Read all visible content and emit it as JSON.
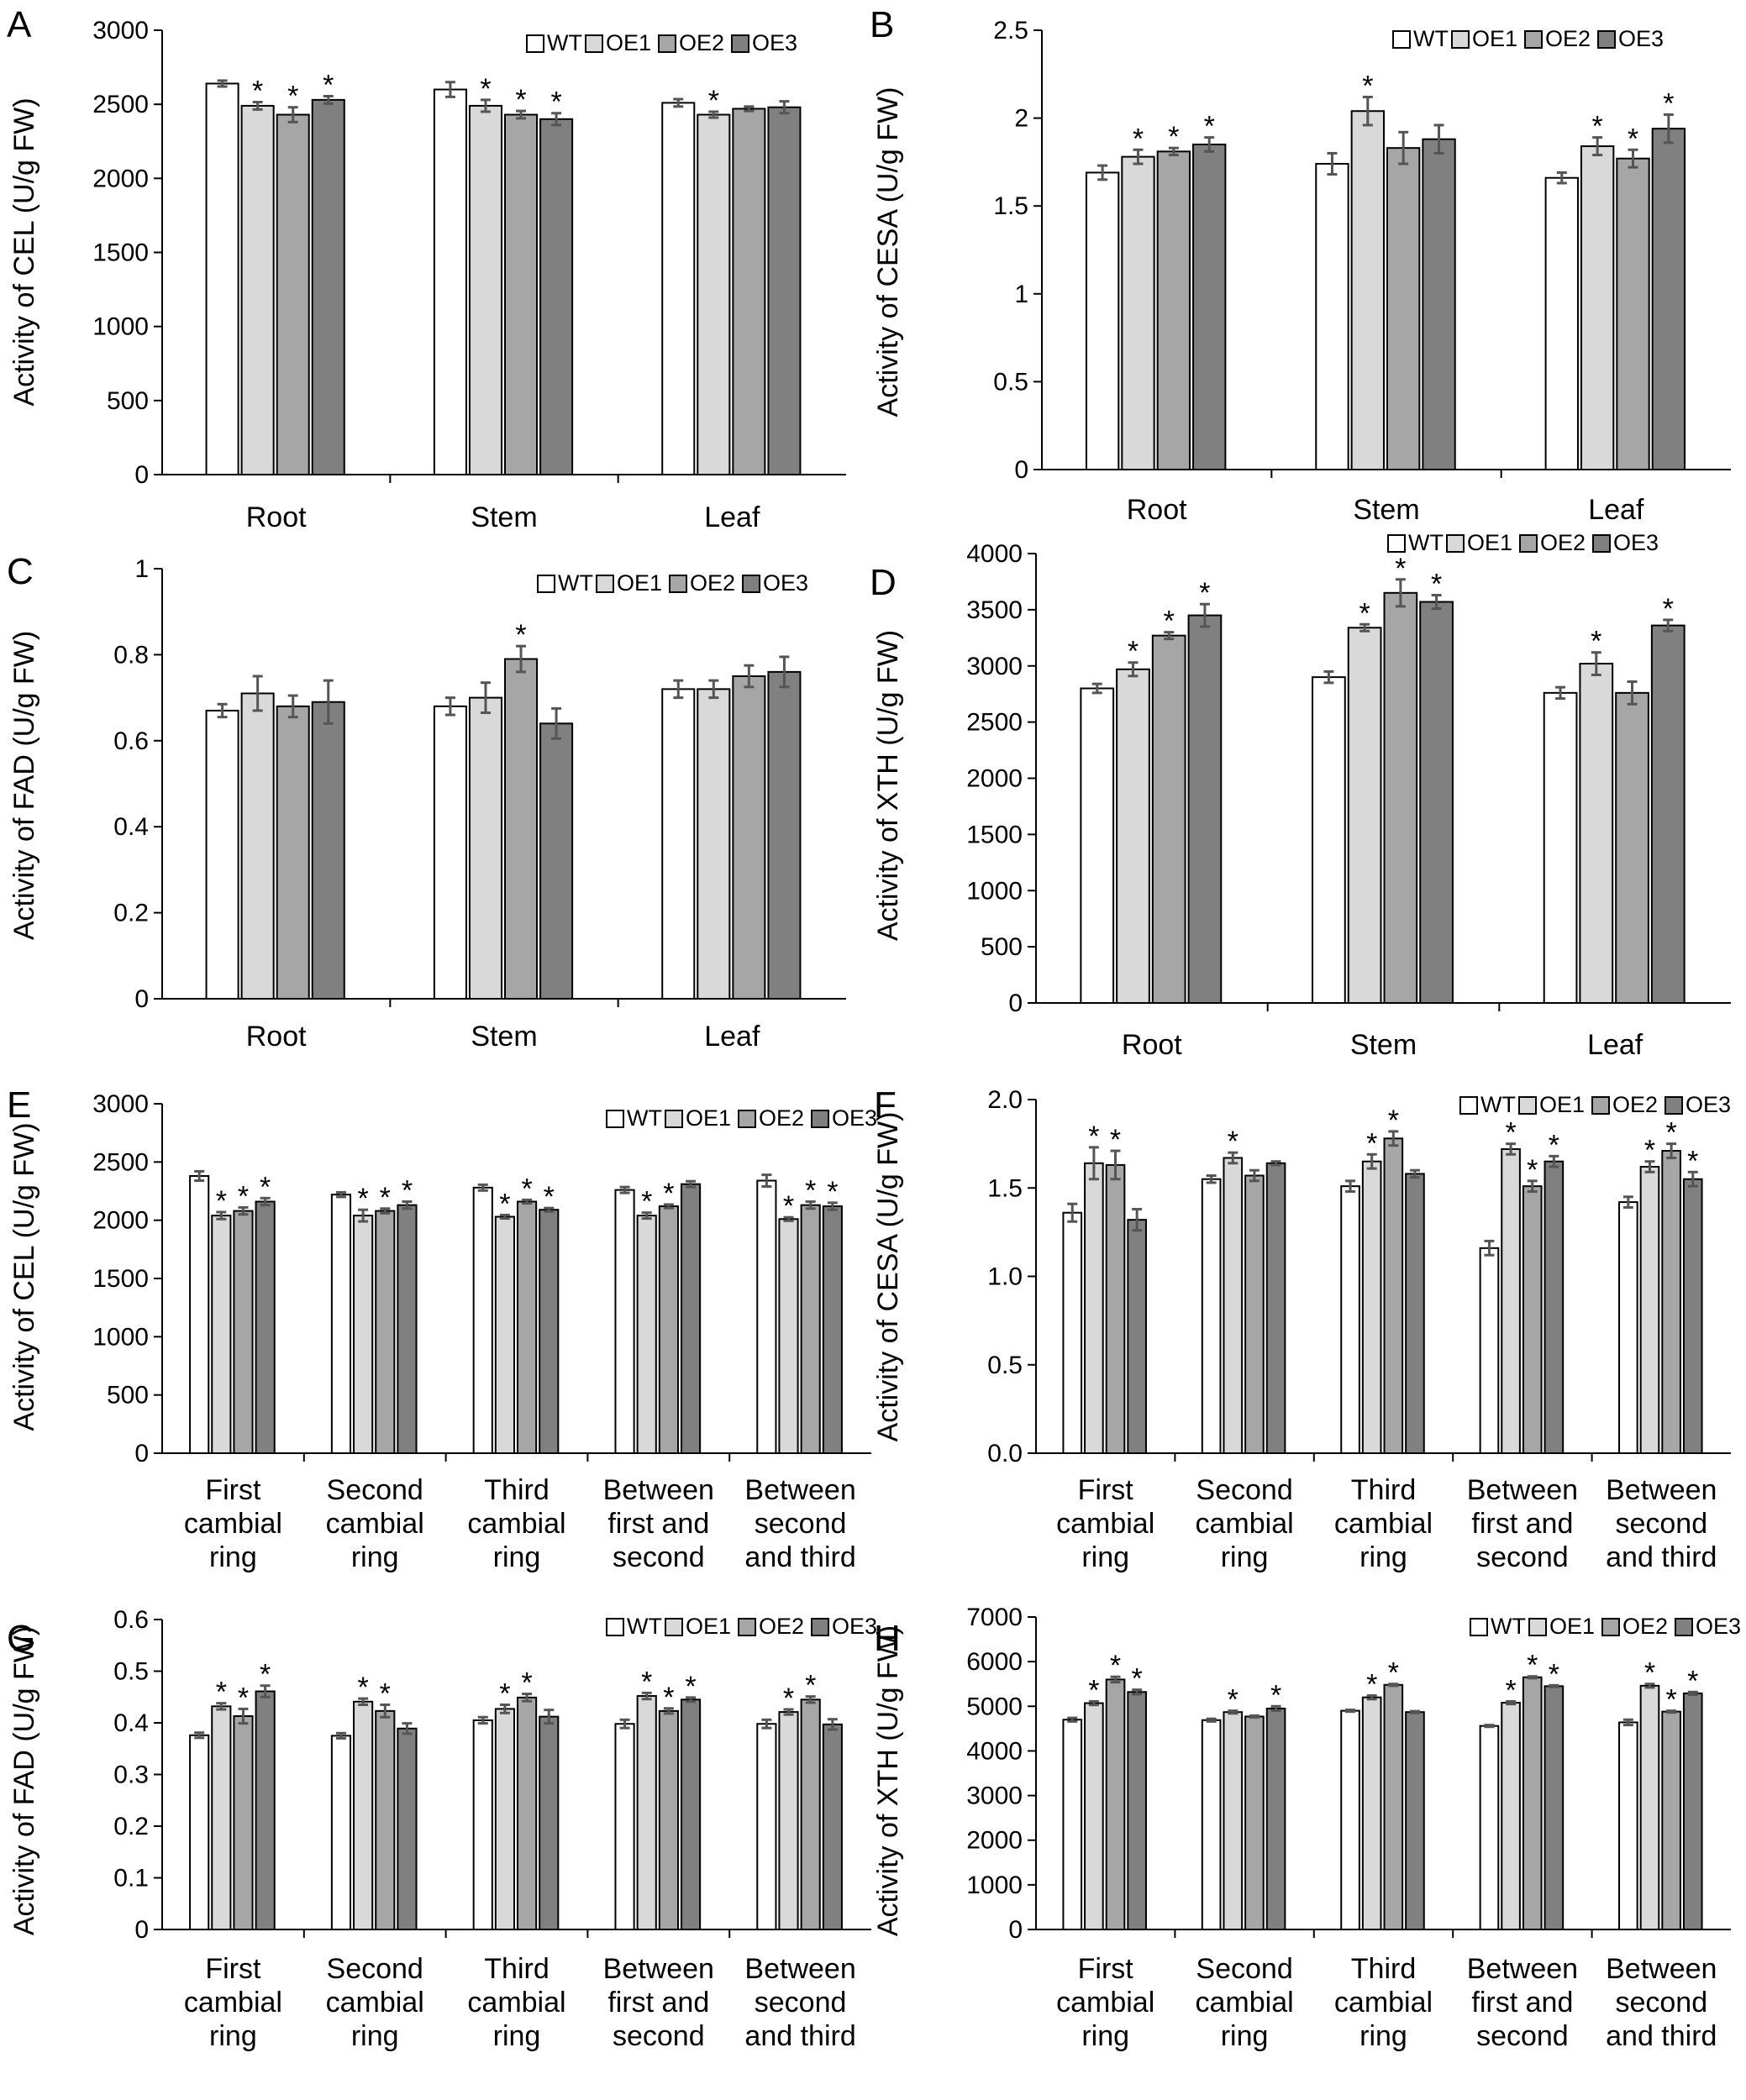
{
  "series_colors": [
    "#ffffff",
    "#d9d9d9",
    "#a6a6a6",
    "#808080"
  ],
  "chart_data": [
    {
      "panel": "A",
      "type": "bar",
      "ylabel": "Activity of CEL (U/g FW)",
      "ylim": [
        0,
        3000
      ],
      "ticks": [
        "0",
        "500",
        "1000",
        "1500",
        "2000",
        "2500",
        "3000"
      ],
      "categories": [
        [
          "Root"
        ],
        [
          "Stem"
        ],
        [
          "Leaf"
        ]
      ],
      "series": [
        {
          "name": "WT",
          "values": [
            2640,
            2600,
            2510
          ],
          "errors": [
            20,
            50,
            25
          ],
          "sig": [
            false,
            false,
            false
          ]
        },
        {
          "name": "OE1",
          "values": [
            2490,
            2490,
            2430
          ],
          "errors": [
            25,
            40,
            20
          ],
          "sig": [
            true,
            true,
            true
          ]
        },
        {
          "name": "OE2",
          "values": [
            2430,
            2430,
            2470
          ],
          "errors": [
            50,
            25,
            15
          ],
          "sig": [
            true,
            true,
            false
          ]
        },
        {
          "name": "OE3",
          "values": [
            2530,
            2400,
            2480
          ],
          "errors": [
            25,
            40,
            40
          ],
          "sig": [
            true,
            true,
            false
          ]
        }
      ]
    },
    {
      "panel": "B",
      "type": "bar",
      "ylabel": "Activity of CESA (U/g FW)",
      "ylim": [
        0,
        2.5
      ],
      "ticks": [
        "0",
        "0.5",
        "1",
        "1.5",
        "2",
        "2.5"
      ],
      "categories": [
        [
          "Root"
        ],
        [
          "Stem"
        ],
        [
          "Leaf"
        ]
      ],
      "series": [
        {
          "name": "WT",
          "values": [
            1.69,
            1.74,
            1.66
          ],
          "errors": [
            0.04,
            0.06,
            0.03
          ],
          "sig": [
            false,
            false,
            false
          ]
        },
        {
          "name": "OE1",
          "values": [
            1.78,
            2.04,
            1.84
          ],
          "errors": [
            0.04,
            0.08,
            0.05
          ],
          "sig": [
            true,
            true,
            true
          ]
        },
        {
          "name": "OE2",
          "values": [
            1.81,
            1.83,
            1.77
          ],
          "errors": [
            0.02,
            0.09,
            0.05
          ],
          "sig": [
            true,
            false,
            true
          ]
        },
        {
          "name": "OE3",
          "values": [
            1.85,
            1.88,
            1.94
          ],
          "errors": [
            0.04,
            0.08,
            0.08
          ],
          "sig": [
            true,
            false,
            true
          ]
        }
      ]
    },
    {
      "panel": "C",
      "type": "bar",
      "ylabel": "Activity of FAD (U/g FW)",
      "ylim": [
        0,
        1
      ],
      "ticks": [
        "0",
        "0.2",
        "0.4",
        "0.6",
        "0.8",
        "1"
      ],
      "categories": [
        [
          "Root"
        ],
        [
          "Stem"
        ],
        [
          "Leaf"
        ]
      ],
      "series": [
        {
          "name": "WT",
          "values": [
            0.67,
            0.68,
            0.72
          ],
          "errors": [
            0.015,
            0.02,
            0.02
          ],
          "sig": [
            false,
            false,
            false
          ]
        },
        {
          "name": "OE1",
          "values": [
            0.71,
            0.7,
            0.72
          ],
          "errors": [
            0.04,
            0.035,
            0.02
          ],
          "sig": [
            false,
            false,
            false
          ]
        },
        {
          "name": "OE2",
          "values": [
            0.68,
            0.79,
            0.75
          ],
          "errors": [
            0.025,
            0.03,
            0.025
          ],
          "sig": [
            false,
            true,
            false
          ]
        },
        {
          "name": "OE3",
          "values": [
            0.69,
            0.64,
            0.76
          ],
          "errors": [
            0.05,
            0.035,
            0.035
          ],
          "sig": [
            false,
            false,
            false
          ]
        }
      ]
    },
    {
      "panel": "D",
      "type": "bar",
      "ylabel": "Activity of XTH (U/g FW)",
      "ylim": [
        0,
        4000
      ],
      "ticks": [
        "0",
        "500",
        "1000",
        "1500",
        "2000",
        "2500",
        "3000",
        "3500",
        "4000"
      ],
      "categories": [
        [
          "Root"
        ],
        [
          "Stem"
        ],
        [
          "Leaf"
        ]
      ],
      "series": [
        {
          "name": "WT",
          "values": [
            2800,
            2900,
            2760
          ],
          "errors": [
            40,
            50,
            50
          ],
          "sig": [
            false,
            false,
            false
          ]
        },
        {
          "name": "OE1",
          "values": [
            2970,
            3340,
            3020
          ],
          "errors": [
            60,
            30,
            100
          ],
          "sig": [
            true,
            true,
            true
          ]
        },
        {
          "name": "OE2",
          "values": [
            3270,
            3650,
            2760
          ],
          "errors": [
            30,
            120,
            100
          ],
          "sig": [
            true,
            true,
            false
          ]
        },
        {
          "name": "OE3",
          "values": [
            3450,
            3570,
            3360
          ],
          "errors": [
            100,
            60,
            50
          ],
          "sig": [
            true,
            true,
            true
          ]
        }
      ]
    },
    {
      "panel": "E",
      "type": "bar",
      "ylabel": "Activity of CEL (U/g FW)",
      "ylim": [
        0,
        3000
      ],
      "ticks": [
        "0",
        "500",
        "1000",
        "1500",
        "2000",
        "2500",
        "3000"
      ],
      "categories": [
        [
          "First",
          "cambial",
          "ring"
        ],
        [
          "Second",
          "cambial",
          "ring"
        ],
        [
          "Third",
          "cambial",
          "ring"
        ],
        [
          "Between",
          "first and",
          "second"
        ],
        [
          "Between",
          "second",
          "and third"
        ]
      ],
      "series": [
        {
          "name": "WT",
          "values": [
            2380,
            2220,
            2280,
            2260,
            2340
          ],
          "errors": [
            40,
            20,
            25,
            25,
            50
          ],
          "sig": [
            false,
            false,
            false,
            false,
            false
          ]
        },
        {
          "name": "OE1",
          "values": [
            2040,
            2040,
            2030,
            2040,
            2010
          ],
          "errors": [
            30,
            50,
            15,
            25,
            15
          ],
          "sig": [
            true,
            true,
            true,
            true,
            true
          ]
        },
        {
          "name": "OE2",
          "values": [
            2080,
            2080,
            2160,
            2120,
            2130
          ],
          "errors": [
            30,
            20,
            15,
            15,
            30
          ],
          "sig": [
            true,
            true,
            true,
            true,
            true
          ]
        },
        {
          "name": "OE3",
          "values": [
            2160,
            2130,
            2090,
            2310,
            2120
          ],
          "errors": [
            30,
            30,
            15,
            25,
            30
          ],
          "sig": [
            true,
            true,
            true,
            false,
            true
          ]
        }
      ]
    },
    {
      "panel": "F",
      "type": "bar",
      "ylabel": "Activity of CESA (U/g FW)",
      "ylim": [
        0,
        2.0
      ],
      "ticks": [
        "0.0",
        "0.5",
        "1.0",
        "1.5",
        "2.0"
      ],
      "categories": [
        [
          "First",
          "cambial",
          "ring"
        ],
        [
          "Second",
          "cambial",
          "ring"
        ],
        [
          "Third",
          "cambial",
          "ring"
        ],
        [
          "Between",
          "first and",
          "second"
        ],
        [
          "Between",
          "second",
          "and third"
        ]
      ],
      "series": [
        {
          "name": "WT",
          "values": [
            1.36,
            1.55,
            1.51,
            1.16,
            1.42
          ],
          "errors": [
            0.05,
            0.02,
            0.03,
            0.04,
            0.03
          ],
          "sig": [
            false,
            false,
            false,
            false,
            false
          ]
        },
        {
          "name": "OE1",
          "values": [
            1.64,
            1.67,
            1.65,
            1.72,
            1.62
          ],
          "errors": [
            0.09,
            0.03,
            0.04,
            0.03,
            0.03
          ],
          "sig": [
            true,
            true,
            true,
            true,
            true
          ]
        },
        {
          "name": "OE2",
          "values": [
            1.63,
            1.57,
            1.78,
            1.51,
            1.71
          ],
          "errors": [
            0.08,
            0.03,
            0.04,
            0.03,
            0.04
          ],
          "sig": [
            true,
            false,
            true,
            true,
            true
          ]
        },
        {
          "name": "OE3",
          "values": [
            1.32,
            1.64,
            1.58,
            1.65,
            1.55
          ],
          "errors": [
            0.06,
            0.01,
            0.02,
            0.03,
            0.04
          ],
          "sig": [
            false,
            false,
            false,
            true,
            true
          ]
        }
      ]
    },
    {
      "panel": "G",
      "type": "bar",
      "ylabel": "Activity of FAD (U/g FW)",
      "ylim": [
        0,
        0.6
      ],
      "ticks": [
        "0",
        "0.1",
        "0.2",
        "0.3",
        "0.4",
        "0.5",
        "0.6"
      ],
      "categories": [
        [
          "First",
          "cambial",
          "ring"
        ],
        [
          "Second",
          "cambial",
          "ring"
        ],
        [
          "Third",
          "cambial",
          "ring"
        ],
        [
          "Between",
          "first and",
          "second"
        ],
        [
          "Between",
          "second",
          "and third"
        ]
      ],
      "series": [
        {
          "name": "WT",
          "values": [
            0.376,
            0.375,
            0.405,
            0.398,
            0.398
          ],
          "errors": [
            0.005,
            0.005,
            0.006,
            0.008,
            0.008
          ],
          "sig": [
            false,
            false,
            false,
            false,
            false
          ]
        },
        {
          "name": "OE1",
          "values": [
            0.432,
            0.441,
            0.427,
            0.452,
            0.421
          ],
          "errors": [
            0.006,
            0.006,
            0.008,
            0.006,
            0.005
          ],
          "sig": [
            true,
            true,
            true,
            true,
            true
          ]
        },
        {
          "name": "OE2",
          "values": [
            0.413,
            0.423,
            0.449,
            0.423,
            0.445
          ],
          "errors": [
            0.014,
            0.012,
            0.007,
            0.005,
            0.006
          ],
          "sig": [
            true,
            true,
            true,
            true,
            true
          ]
        },
        {
          "name": "OE3",
          "values": [
            0.461,
            0.389,
            0.412,
            0.445,
            0.397
          ],
          "errors": [
            0.011,
            0.01,
            0.013,
            0.004,
            0.01
          ],
          "sig": [
            true,
            false,
            false,
            true,
            false
          ]
        }
      ]
    },
    {
      "panel": "H",
      "type": "bar",
      "ylabel": "Activity of XTH (U/g FW)",
      "ylim": [
        0,
        7000
      ],
      "ticks": [
        "0",
        "1000",
        "2000",
        "3000",
        "4000",
        "5000",
        "6000",
        "7000"
      ],
      "categories": [
        [
          "First",
          "cambial",
          "ring"
        ],
        [
          "Second",
          "cambial",
          "ring"
        ],
        [
          "Third",
          "cambial",
          "ring"
        ],
        [
          "Between",
          "first and",
          "second"
        ],
        [
          "Between",
          "second",
          "and third"
        ]
      ],
      "series": [
        {
          "name": "WT",
          "values": [
            4700,
            4690,
            4900,
            4560,
            4640
          ],
          "errors": [
            40,
            30,
            20,
            20,
            60
          ],
          "sig": [
            false,
            false,
            false,
            false,
            false
          ]
        },
        {
          "name": "OE1",
          "values": [
            5070,
            4870,
            5200,
            5080,
            5460
          ],
          "errors": [
            40,
            30,
            40,
            30,
            40
          ],
          "sig": [
            true,
            true,
            true,
            true,
            true
          ]
        },
        {
          "name": "OE2",
          "values": [
            5600,
            4770,
            5480,
            5650,
            4880
          ],
          "errors": [
            60,
            20,
            20,
            20,
            20
          ],
          "sig": [
            true,
            false,
            true,
            true,
            true
          ]
        },
        {
          "name": "OE3",
          "values": [
            5320,
            4950,
            4870,
            5450,
            5290
          ],
          "errors": [
            50,
            50,
            20,
            20,
            30
          ],
          "sig": [
            true,
            true,
            false,
            true,
            true
          ]
        }
      ]
    }
  ]
}
